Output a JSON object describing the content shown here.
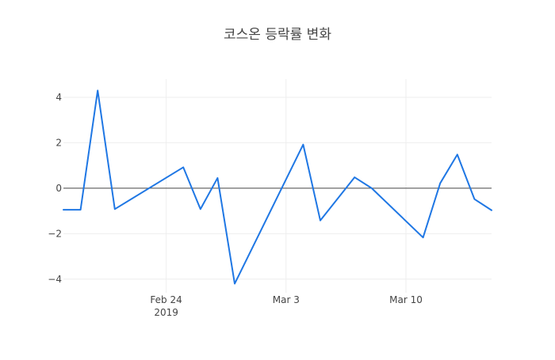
{
  "chart_data": {
    "type": "line",
    "title": "코스온 등락률 변화",
    "xlabel": "",
    "ylabel": "",
    "ylim": [
      -4.6,
      4.8
    ],
    "xlim": [
      "2019-02-18",
      "2019-03-15"
    ],
    "grid": true,
    "legend": "none",
    "y_ticks": [
      4,
      2,
      0,
      -2,
      -4
    ],
    "y_tick_labels": [
      "4",
      "2",
      "0",
      "−2",
      "−4"
    ],
    "x_ticks": [
      {
        "date": "2019-02-24",
        "label": "Feb 24",
        "sublabel": "2019"
      },
      {
        "date": "2019-03-03",
        "label": "Mar 3",
        "sublabel": ""
      },
      {
        "date": "2019-03-10",
        "label": "Mar 10",
        "sublabel": ""
      }
    ],
    "series": [
      {
        "color": "#1f77e4",
        "points": [
          {
            "x": "2019-02-18",
            "y": -0.95
          },
          {
            "x": "2019-02-19",
            "y": -0.95
          },
          {
            "x": "2019-02-20",
            "y": 4.3
          },
          {
            "x": "2019-02-21",
            "y": -0.92
          },
          {
            "x": "2019-02-25",
            "y": 0.92
          },
          {
            "x": "2019-02-26",
            "y": -0.92
          },
          {
            "x": "2019-02-27",
            "y": 0.45
          },
          {
            "x": "2019-02-28",
            "y": -4.2
          },
          {
            "x": "2019-03-04",
            "y": 1.92
          },
          {
            "x": "2019-03-05",
            "y": -1.42
          },
          {
            "x": "2019-03-07",
            "y": 0.48
          },
          {
            "x": "2019-03-08",
            "y": 0.0
          },
          {
            "x": "2019-03-11",
            "y": -2.17
          },
          {
            "x": "2019-03-12",
            "y": 0.22
          },
          {
            "x": "2019-03-13",
            "y": 1.48
          },
          {
            "x": "2019-03-14",
            "y": -0.48
          },
          {
            "x": "2019-03-15",
            "y": -0.97
          }
        ]
      }
    ]
  }
}
